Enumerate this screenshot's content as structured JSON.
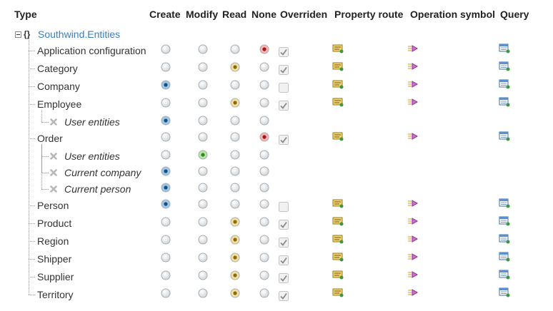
{
  "header": {
    "columns": [
      "Type",
      "Create",
      "Modify",
      "Read",
      "None",
      "Overriden",
      "Property route",
      "Operation symbol",
      "Query"
    ]
  },
  "root": {
    "icon": "{}",
    "label": "Southwind.Entities"
  },
  "rows": [
    {
      "label": "Application configuration",
      "condition": false,
      "allowed": "none",
      "overriden": true,
      "icons": true
    },
    {
      "label": "Category",
      "condition": false,
      "allowed": "read",
      "overriden": true,
      "icons": true
    },
    {
      "label": "Company",
      "condition": false,
      "allowed": "create",
      "overriden": false,
      "icons": true
    },
    {
      "label": "Employee",
      "condition": false,
      "allowed": "read",
      "overriden": true,
      "icons": true
    },
    {
      "label": "User entities",
      "condition": true,
      "allowed": "create",
      "overriden": null,
      "icons": false
    },
    {
      "label": "Order",
      "condition": false,
      "allowed": "none",
      "overriden": true,
      "icons": true
    },
    {
      "label": "User entities",
      "condition": true,
      "allowed": "modify",
      "overriden": null,
      "icons": false
    },
    {
      "label": "Current company",
      "condition": true,
      "allowed": "create",
      "overriden": null,
      "icons": false
    },
    {
      "label": "Current person",
      "condition": true,
      "allowed": "create",
      "overriden": null,
      "icons": false
    },
    {
      "label": "Person",
      "condition": false,
      "allowed": "create",
      "overriden": false,
      "icons": true
    },
    {
      "label": "Product",
      "condition": false,
      "allowed": "read",
      "overriden": true,
      "icons": true
    },
    {
      "label": "Region",
      "condition": false,
      "allowed": "read",
      "overriden": true,
      "icons": true
    },
    {
      "label": "Shipper",
      "condition": false,
      "allowed": "read",
      "overriden": true,
      "icons": true
    },
    {
      "label": "Supplier",
      "condition": false,
      "allowed": "read",
      "overriden": true,
      "icons": true
    },
    {
      "label": "Territory",
      "condition": false,
      "allowed": "read",
      "overriden": true,
      "icons": true
    }
  ]
}
